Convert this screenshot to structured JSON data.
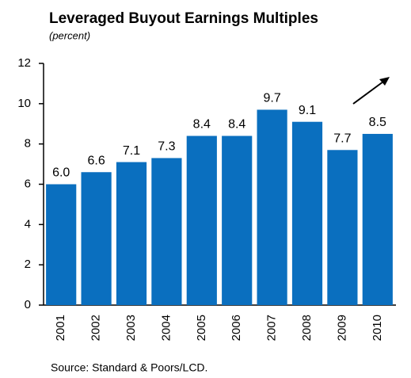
{
  "chart_data": {
    "type": "bar",
    "title": "Leveraged Buyout Earnings Multiples",
    "subtitle": "(percent)",
    "source": "Source: Standard & Poors/LCD.",
    "categories": [
      "2001",
      "2002",
      "2003",
      "2004",
      "2005",
      "2006",
      "2007",
      "2008",
      "2009",
      "2010"
    ],
    "values": [
      6.0,
      6.6,
      7.1,
      7.3,
      8.4,
      8.4,
      9.7,
      9.1,
      7.7,
      8.5
    ],
    "value_labels": [
      "6.0",
      "6.6",
      "7.1",
      "7.3",
      "8.4",
      "8.4",
      "9.7",
      "9.1",
      "7.7",
      "8.5"
    ],
    "color": "#0a6fbf",
    "ylim": [
      0,
      12
    ],
    "yticks": [
      0,
      2,
      4,
      6,
      8,
      10,
      12
    ],
    "grid": false
  }
}
